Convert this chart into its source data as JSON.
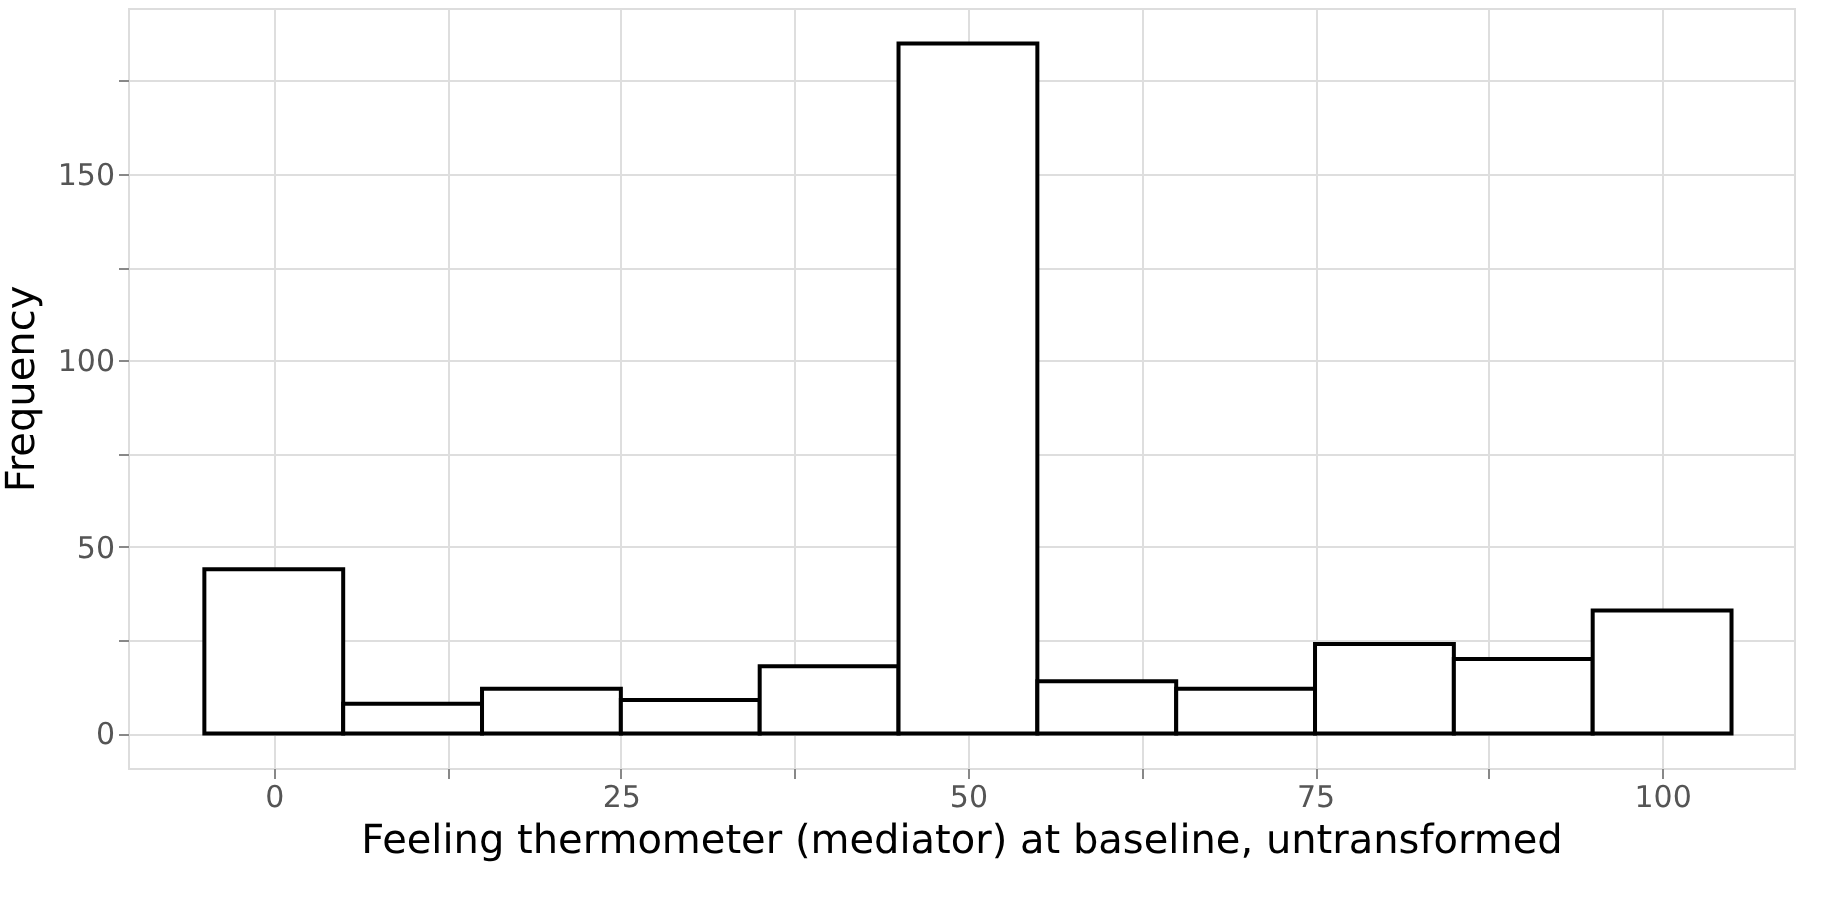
{
  "chart_data": {
    "type": "histogram",
    "xlabel": "Feeling thermometer (mediator) at baseline, untransformed",
    "ylabel": "Frequency",
    "bins": [
      -5,
      5,
      15,
      25,
      35,
      45,
      55,
      65,
      75,
      85,
      95,
      105
    ],
    "values": [
      44,
      8,
      12,
      9,
      18,
      185,
      14,
      12,
      24,
      20,
      33
    ],
    "color": "#ffffff",
    "xlim": [
      -10.5,
      109.5
    ],
    "ylim": [
      -9.25,
      194.5
    ],
    "xticks": [
      0,
      {
        "value": 12.5,
        "label": null
      },
      25,
      {
        "value": 37.5,
        "label": null
      },
      50,
      {
        "value": 62.5,
        "label": null
      },
      75,
      {
        "value": 87.5,
        "label": null
      },
      100
    ],
    "yticks": [
      0,
      {
        "value": 25,
        "label": null
      },
      50,
      {
        "value": 75,
        "label": null
      },
      100,
      {
        "value": 125,
        "label": null
      },
      150,
      {
        "value": 175,
        "label": null
      }
    ],
    "grid": true
  }
}
